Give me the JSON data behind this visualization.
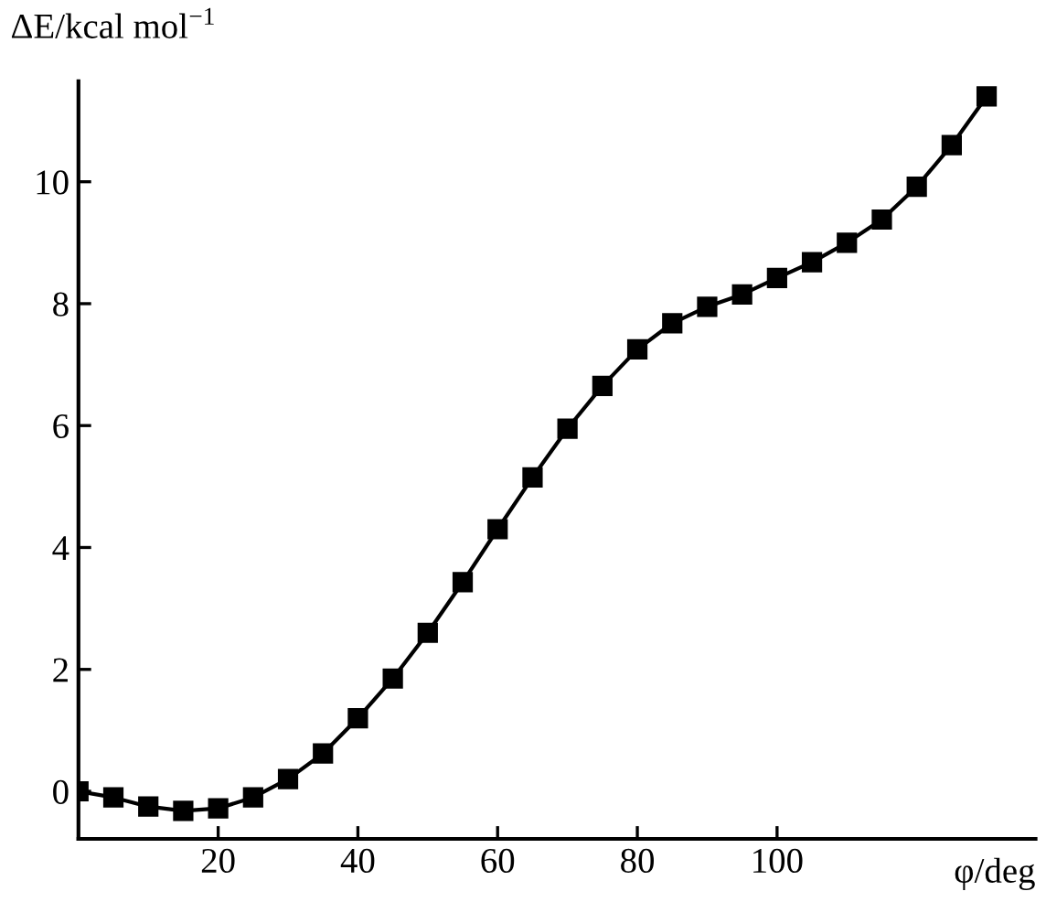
{
  "chart_data": {
    "type": "line",
    "xlabel": "φ/deg",
    "ylabel": "ΔE/kcal mol$^{−1}$",
    "x": [
      0,
      5,
      10,
      15,
      20,
      25,
      30,
      35,
      40,
      45,
      50,
      55,
      60,
      65,
      70,
      75,
      80,
      85,
      90,
      95,
      100,
      105,
      110,
      115,
      120,
      125,
      130
    ],
    "series": [
      {
        "color": "#000000",
        "values": [
          0,
          -0.1,
          -0.25,
          -0.32,
          -0.28,
          -0.1,
          0.2,
          0.62,
          1.2,
          1.85,
          2.6,
          3.43,
          4.3,
          5.15,
          5.95,
          6.65,
          7.25,
          7.68,
          7.95,
          8.15,
          8.42,
          8.68,
          9.0,
          9.38,
          9.92,
          10.6,
          11.4
        ]
      }
    ],
    "xlim": [
      0,
      137
    ],
    "ylim": [
      -0.78,
      11.65
    ],
    "xticks": [
      20,
      40,
      60,
      80,
      100
    ],
    "yticks": [
      0,
      2,
      4,
      6,
      8,
      10
    ],
    "marker": "square",
    "line_style": "solid",
    "grid": false,
    "legend": false
  }
}
